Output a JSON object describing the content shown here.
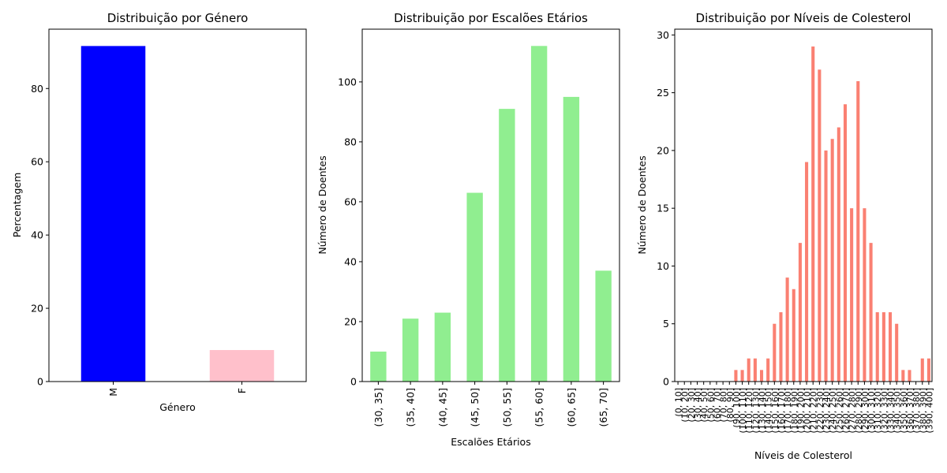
{
  "chart_data": [
    {
      "type": "bar",
      "title": "Distribuição por Género",
      "xlabel": "Género",
      "ylabel": "Percentagem",
      "categories": [
        "M",
        "F"
      ],
      "values": [
        91.6,
        8.6
      ],
      "ylim": [
        0,
        96.2
      ],
      "yticks": [
        0,
        20,
        40,
        60,
        80
      ],
      "colors": [
        "#0000ff",
        "#ffc0cb"
      ],
      "grid": false
    },
    {
      "type": "bar",
      "title": "Distribuição por Escalões Etários",
      "xlabel": "Escalões Etários",
      "ylabel": "Número de Doentes",
      "categories": [
        "(30, 35]",
        "(35, 40]",
        "(40, 45]",
        "(45, 50]",
        "(50, 55]",
        "(55, 60]",
        "(60, 65]",
        "(65, 70]"
      ],
      "values": [
        10,
        21,
        23,
        63,
        91,
        112,
        95,
        37
      ],
      "ylim": [
        0,
        117.6
      ],
      "yticks": [
        0,
        20,
        40,
        60,
        80,
        100
      ],
      "colors": [
        "#90ee90"
      ],
      "grid": false
    },
    {
      "type": "bar",
      "title": "Distribuição por Níveis de Colesterol",
      "xlabel": "Níveis de Colesterol",
      "ylabel": "Número de Doentes",
      "categories": [
        "(0, 10]",
        "(10, 20]",
        "(20, 30]",
        "(30, 40]",
        "(40, 50]",
        "(50, 60]",
        "(60, 70]",
        "(70, 80]",
        "(80, 90]",
        "(90, 100]",
        "(100, 110]",
        "(110, 120]",
        "(120, 130]",
        "(130, 140]",
        "(140, 150]",
        "(150, 160]",
        "(160, 170]",
        "(170, 180]",
        "(180, 190]",
        "(190, 200]",
        "(200, 210]",
        "(210, 220]",
        "(220, 230]",
        "(230, 240]",
        "(240, 250]",
        "(250, 260]",
        "(260, 270]",
        "(270, 280]",
        "(280, 290]",
        "(290, 300]",
        "(300, 310]",
        "(310, 320]",
        "(320, 330]",
        "(330, 340]",
        "(340, 350]",
        "(350, 360]",
        "(360, 370]",
        "(370, 380]",
        "(380, 390]",
        "(390, 400]"
      ],
      "values": [
        0,
        0,
        0,
        0,
        0,
        0,
        0,
        0,
        0,
        1,
        1,
        2,
        2,
        1,
        2,
        5,
        6,
        9,
        8,
        12,
        19,
        29,
        27,
        20,
        21,
        22,
        24,
        15,
        26,
        15,
        12,
        6,
        6,
        6,
        5,
        1,
        1,
        0,
        2,
        2
      ],
      "ylim": [
        0,
        30.5
      ],
      "yticks": [
        0,
        5,
        10,
        15,
        20,
        25,
        30
      ],
      "colors": [
        "#fa8072"
      ],
      "grid": false
    }
  ]
}
